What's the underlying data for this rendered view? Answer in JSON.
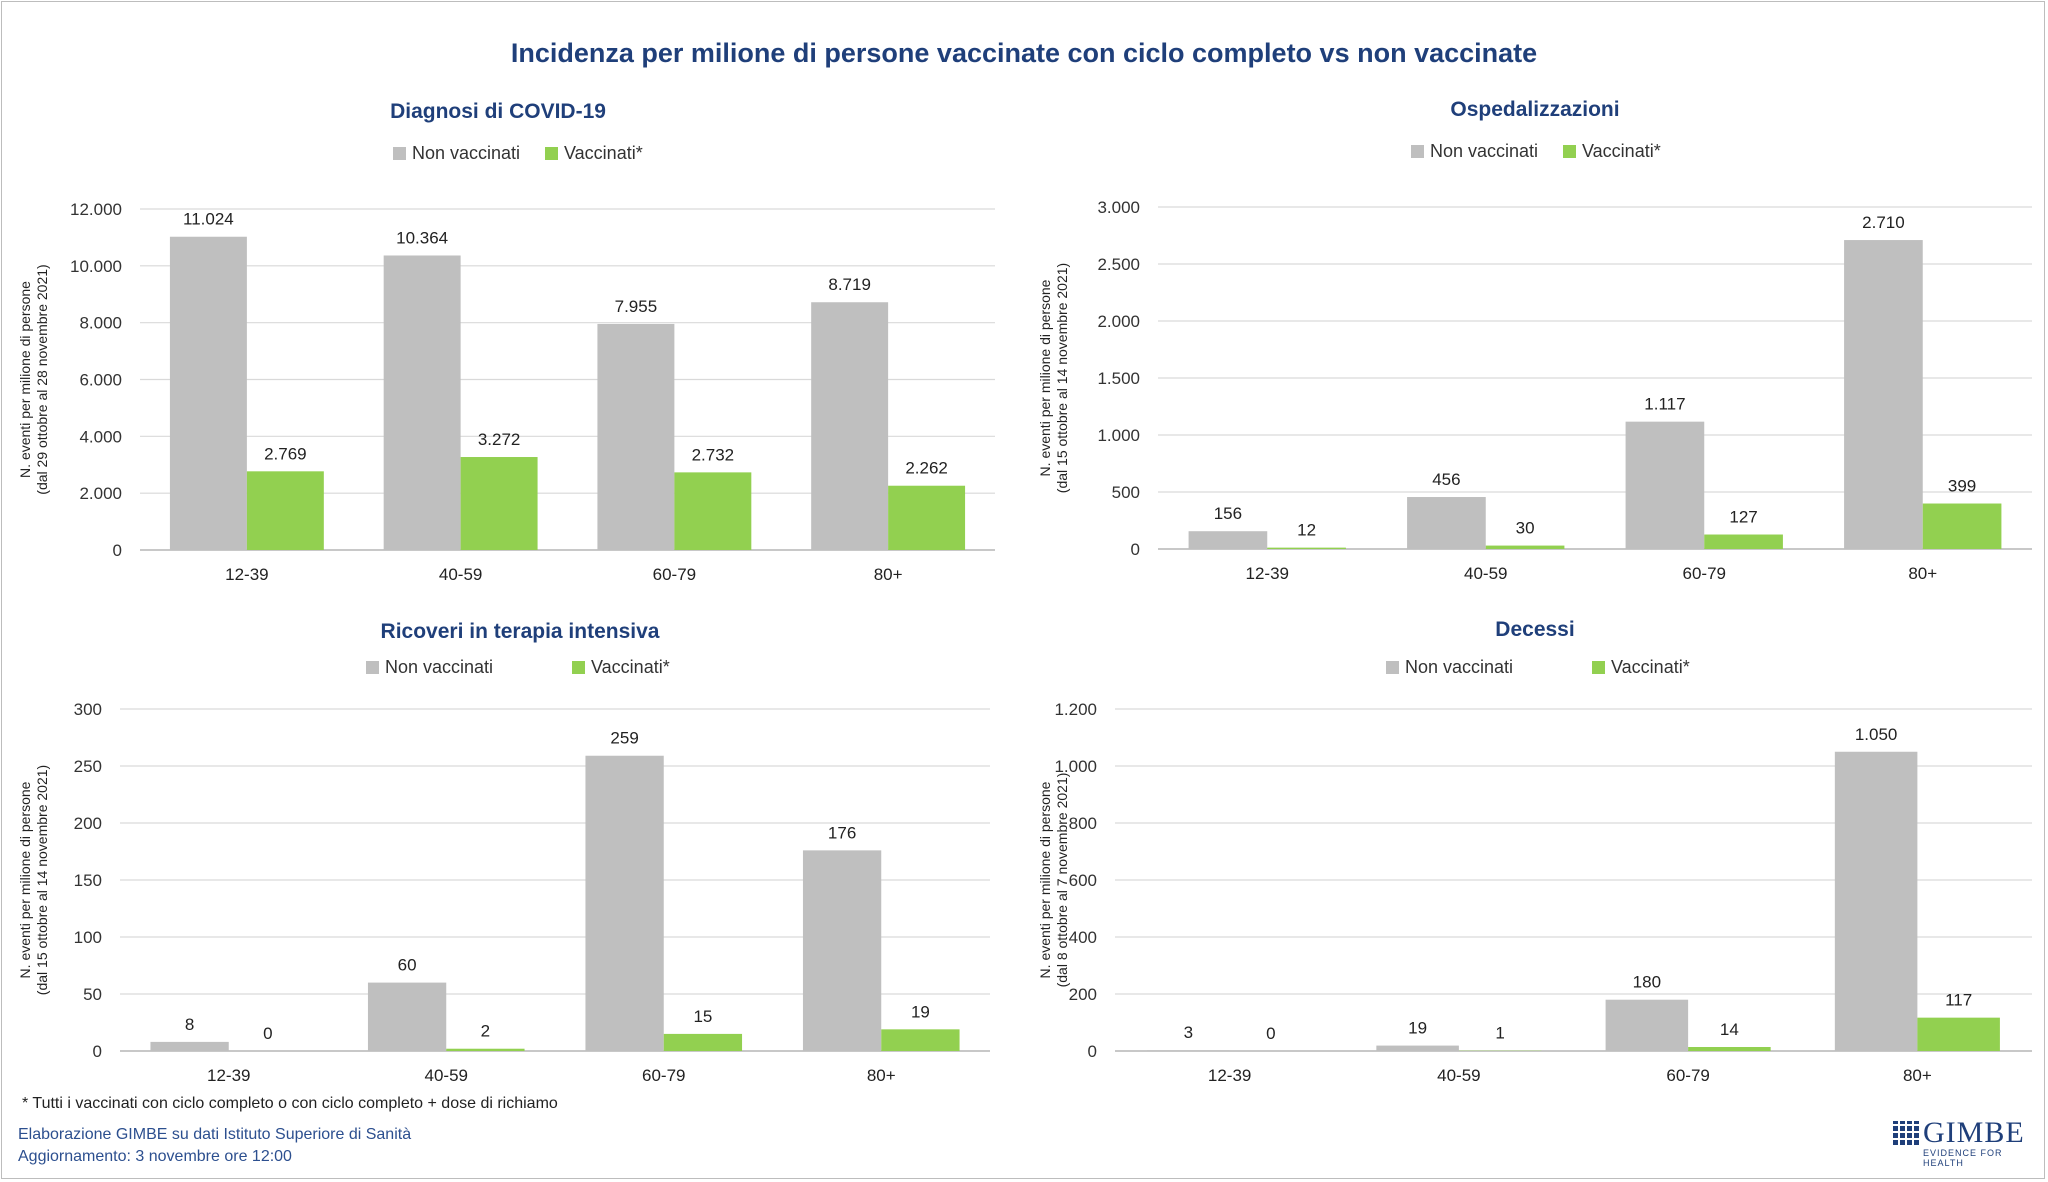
{
  "title": "Incidenza per milione di persone vaccinate con ciclo completo vs non vaccinate",
  "footnote": "* Tutti i vaccinati con ciclo completo o con ciclo completo +  dose di richiamo",
  "source": "Elaborazione GIMBE su dati Istituto Superiore di Sanità",
  "updated": "Aggiornamento: 3 novembre ore 12:00",
  "logo": {
    "name": "GIMBE",
    "tagline": "EVIDENCE FOR HEALTH"
  },
  "colors": {
    "non_vaccinated": "#bfbfbf",
    "vaccinated": "#92d050",
    "title": "#1f3f7a"
  },
  "chart_data": [
    {
      "type": "bar",
      "title": "Diagnosi di COVID-19",
      "ylabel": [
        "N. eventi per milione di persone",
        "(dal 29  ottobre al 28  novembre 2021)"
      ],
      "categories": [
        "12-39",
        "40-59",
        "60-79",
        "80+"
      ],
      "series": [
        {
          "name": "Non vaccinati",
          "values": [
            11024,
            10364,
            7955,
            8719
          ]
        },
        {
          "name": "Vaccinati*",
          "values": [
            2769,
            3272,
            2732,
            2262
          ]
        }
      ],
      "ylim": [
        0,
        12000
      ],
      "yticks": [
        0,
        2000,
        4000,
        6000,
        8000,
        10000,
        12000
      ],
      "ytick_labels": [
        "0",
        "2.000",
        "4.000",
        "6.000",
        "8.000",
        "10.000",
        "12.000"
      ],
      "value_labels": [
        [
          "11.024",
          "10.364",
          "7.955",
          "8.719"
        ],
        [
          "2.769",
          "3.272",
          "2.732",
          "2.262"
        ]
      ],
      "legend": "top-center",
      "grid": true
    },
    {
      "type": "bar",
      "title": "Ospedalizzazioni",
      "ylabel": [
        "N. eventi per milione di persone",
        "(dal 15  ottobre al 14  novembre 2021)"
      ],
      "categories": [
        "12-39",
        "40-59",
        "60-79",
        "80+"
      ],
      "series": [
        {
          "name": "Non vaccinati",
          "values": [
            156,
            456,
            1117,
            2710
          ]
        },
        {
          "name": "Vaccinati*",
          "values": [
            12,
            30,
            127,
            399
          ]
        }
      ],
      "ylim": [
        0,
        3000
      ],
      "yticks": [
        0,
        500,
        1000,
        1500,
        2000,
        2500,
        3000
      ],
      "ytick_labels": [
        "0",
        "500",
        "1.000",
        "1.500",
        "2.000",
        "2.500",
        "3.000"
      ],
      "value_labels": [
        [
          "156",
          "456",
          "1.117",
          "2.710"
        ],
        [
          "12",
          "30",
          "127",
          "399"
        ]
      ],
      "legend": "top-center",
      "grid": true
    },
    {
      "type": "bar",
      "title": "Ricoveri in terapia intensiva",
      "ylabel": [
        "N. eventi per milione di persone",
        "(dal 15  ottobre al 14  novembre 2021)"
      ],
      "categories": [
        "12-39",
        "40-59",
        "60-79",
        "80+"
      ],
      "series": [
        {
          "name": "Non vaccinati",
          "values": [
            8,
            60,
            259,
            176
          ]
        },
        {
          "name": "Vaccinati*",
          "values": [
            0,
            2,
            15,
            19
          ]
        }
      ],
      "ylim": [
        0,
        300
      ],
      "yticks": [
        0,
        50,
        100,
        150,
        200,
        250,
        300
      ],
      "ytick_labels": [
        "0",
        "50",
        "100",
        "150",
        "200",
        "250",
        "300"
      ],
      "value_labels": [
        [
          "8",
          "60",
          "259",
          "176"
        ],
        [
          "0",
          "2",
          "15",
          "19"
        ]
      ],
      "legend": "top-center",
      "grid": true
    },
    {
      "type": "bar",
      "title": "Decessi",
      "ylabel": [
        "N. eventi per milione di persone",
        "(dal 8  ottobre al 7  novembre 2021)"
      ],
      "categories": [
        "12-39",
        "40-59",
        "60-79",
        "80+"
      ],
      "series": [
        {
          "name": "Non vaccinati",
          "values": [
            3,
            19,
            180,
            1050
          ]
        },
        {
          "name": "Vaccinati*",
          "values": [
            0,
            1,
            14,
            117
          ]
        }
      ],
      "ylim": [
        0,
        1200
      ],
      "yticks": [
        0,
        200,
        400,
        600,
        800,
        1000,
        1200
      ],
      "ytick_labels": [
        "0",
        "200",
        "400",
        "600",
        "800",
        "1.000",
        "1.200"
      ],
      "value_labels": [
        [
          "3",
          "19",
          "180",
          "1.050"
        ],
        [
          "0",
          "1",
          "14",
          "117"
        ]
      ],
      "legend": "top-center",
      "grid": true
    }
  ]
}
